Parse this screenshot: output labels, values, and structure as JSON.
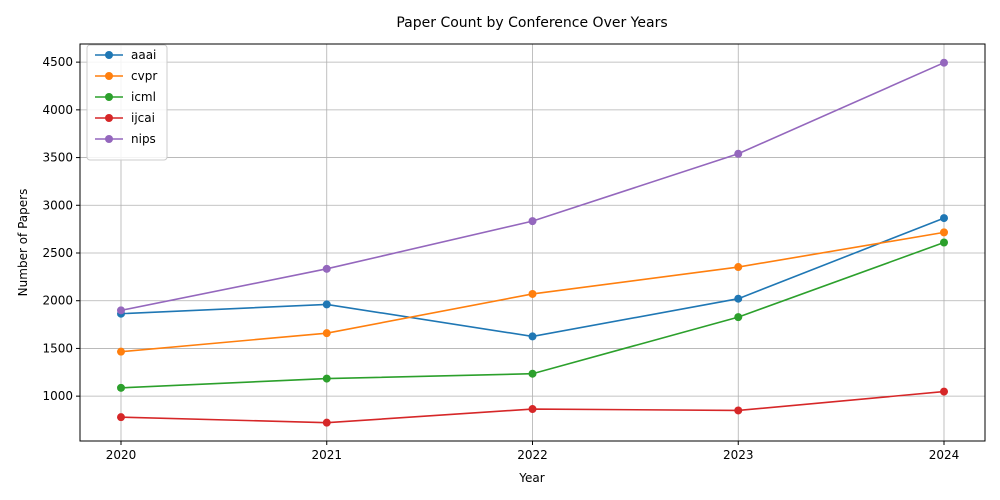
{
  "chart_data": {
    "type": "line",
    "title": "Paper Count by Conference Over Years",
    "xlabel": "Year",
    "ylabel": "Number of Papers",
    "x": [
      "2020",
      "2021",
      "2022",
      "2023",
      "2024"
    ],
    "ylim": [
      530,
      4690
    ],
    "yticks": [
      1000,
      1500,
      2000,
      2500,
      3000,
      3500,
      4000,
      4500
    ],
    "grid": true,
    "legend_position": "top-left",
    "series": [
      {
        "name": "aaai",
        "color": "#1f77b4",
        "values": [
          1864,
          1961,
          1626,
          2021,
          2866
        ]
      },
      {
        "name": "cvpr",
        "color": "#ff7f0e",
        "values": [
          1466,
          1660,
          2071,
          2353,
          2716
        ]
      },
      {
        "name": "icml",
        "color": "#2ca02c",
        "values": [
          1087,
          1184,
          1235,
          1828,
          2610
        ]
      },
      {
        "name": "ijcai",
        "color": "#d62728",
        "values": [
          780,
          722,
          865,
          850,
          1048
        ]
      },
      {
        "name": "nips",
        "color": "#9467bd",
        "values": [
          1899,
          2334,
          2834,
          3540,
          4494
        ]
      }
    ]
  }
}
